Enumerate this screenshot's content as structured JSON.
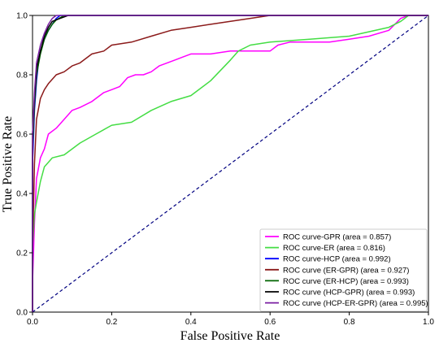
{
  "chart_data": {
    "type": "line",
    "xlabel": "False Positive Rate",
    "ylabel": "True Positive Rate",
    "xlim": [
      0.0,
      1.0
    ],
    "ylim": [
      0.0,
      1.0
    ],
    "xticks": [
      "0.0",
      "0.2",
      "0.4",
      "0.6",
      "0.8",
      "1.0"
    ],
    "yticks": [
      "0.0",
      "0.2",
      "0.4",
      "0.6",
      "0.8",
      "1.0"
    ],
    "grid": false,
    "legend_position": "bottom-right",
    "diagonal": {
      "color": "#000080",
      "style": "dashed",
      "points": [
        [
          0,
          0
        ],
        [
          1,
          1
        ]
      ]
    },
    "series": [
      {
        "name": "ROC curve-GPR (area = 0.857)",
        "color": "#ff00ff",
        "points": [
          [
            0,
            0
          ],
          [
            0,
            0.1
          ],
          [
            0.005,
            0.3
          ],
          [
            0.01,
            0.45
          ],
          [
            0.02,
            0.52
          ],
          [
            0.03,
            0.55
          ],
          [
            0.04,
            0.6
          ],
          [
            0.06,
            0.62
          ],
          [
            0.08,
            0.65
          ],
          [
            0.1,
            0.68
          ],
          [
            0.12,
            0.69
          ],
          [
            0.15,
            0.71
          ],
          [
            0.18,
            0.74
          ],
          [
            0.2,
            0.75
          ],
          [
            0.22,
            0.76
          ],
          [
            0.24,
            0.79
          ],
          [
            0.26,
            0.8
          ],
          [
            0.28,
            0.8
          ],
          [
            0.3,
            0.81
          ],
          [
            0.32,
            0.83
          ],
          [
            0.34,
            0.84
          ],
          [
            0.36,
            0.85
          ],
          [
            0.38,
            0.86
          ],
          [
            0.4,
            0.87
          ],
          [
            0.45,
            0.87
          ],
          [
            0.5,
            0.88
          ],
          [
            0.55,
            0.88
          ],
          [
            0.6,
            0.88
          ],
          [
            0.62,
            0.9
          ],
          [
            0.65,
            0.91
          ],
          [
            0.7,
            0.91
          ],
          [
            0.75,
            0.91
          ],
          [
            0.8,
            0.92
          ],
          [
            0.85,
            0.93
          ],
          [
            0.9,
            0.95
          ],
          [
            0.93,
            0.99
          ],
          [
            0.95,
            1.0
          ],
          [
            1.0,
            1.0
          ]
        ]
      },
      {
        "name": "ROC curve-ER (area = 0.816)",
        "color": "#44dd44",
        "points": [
          [
            0,
            0
          ],
          [
            0,
            0.22
          ],
          [
            0.005,
            0.33
          ],
          [
            0.01,
            0.37
          ],
          [
            0.02,
            0.44
          ],
          [
            0.03,
            0.49
          ],
          [
            0.05,
            0.52
          ],
          [
            0.08,
            0.53
          ],
          [
            0.12,
            0.57
          ],
          [
            0.16,
            0.6
          ],
          [
            0.2,
            0.63
          ],
          [
            0.25,
            0.64
          ],
          [
            0.3,
            0.68
          ],
          [
            0.35,
            0.71
          ],
          [
            0.4,
            0.73
          ],
          [
            0.45,
            0.78
          ],
          [
            0.5,
            0.85
          ],
          [
            0.52,
            0.88
          ],
          [
            0.55,
            0.9
          ],
          [
            0.6,
            0.91
          ],
          [
            0.7,
            0.92
          ],
          [
            0.8,
            0.93
          ],
          [
            0.9,
            0.96
          ],
          [
            0.93,
            0.98
          ],
          [
            0.95,
            1.0
          ],
          [
            1.0,
            1.0
          ]
        ]
      },
      {
        "name": "ROC curve-HCP (area = 0.992)",
        "color": "#0000ff",
        "points": [
          [
            0,
            0
          ],
          [
            0,
            0.5
          ],
          [
            0.005,
            0.68
          ],
          [
            0.01,
            0.78
          ],
          [
            0.015,
            0.84
          ],
          [
            0.02,
            0.88
          ],
          [
            0.03,
            0.92
          ],
          [
            0.04,
            0.95
          ],
          [
            0.05,
            0.97
          ],
          [
            0.06,
            0.99
          ],
          [
            0.07,
            1.0
          ],
          [
            1.0,
            1.0
          ]
        ]
      },
      {
        "name": "ROC curve (ER-GPR)  (area = 0.927)",
        "color": "#8b1a1a",
        "points": [
          [
            0,
            0
          ],
          [
            0,
            0.2
          ],
          [
            0.005,
            0.5
          ],
          [
            0.01,
            0.65
          ],
          [
            0.02,
            0.72
          ],
          [
            0.03,
            0.75
          ],
          [
            0.04,
            0.77
          ],
          [
            0.06,
            0.8
          ],
          [
            0.08,
            0.81
          ],
          [
            0.1,
            0.83
          ],
          [
            0.12,
            0.84
          ],
          [
            0.15,
            0.87
          ],
          [
            0.18,
            0.88
          ],
          [
            0.2,
            0.9
          ],
          [
            0.25,
            0.91
          ],
          [
            0.3,
            0.93
          ],
          [
            0.35,
            0.95
          ],
          [
            0.4,
            0.96
          ],
          [
            0.45,
            0.97
          ],
          [
            0.5,
            0.98
          ],
          [
            0.55,
            0.99
          ],
          [
            0.6,
            1.0
          ],
          [
            1.0,
            1.0
          ]
        ]
      },
      {
        "name": "ROC curve (ER-HCP)  (area = 0.993)",
        "color": "#006400",
        "points": [
          [
            0,
            0
          ],
          [
            0,
            0.55
          ],
          [
            0.005,
            0.7
          ],
          [
            0.01,
            0.8
          ],
          [
            0.02,
            0.87
          ],
          [
            0.03,
            0.92
          ],
          [
            0.04,
            0.95
          ],
          [
            0.05,
            0.97
          ],
          [
            0.06,
            0.985
          ],
          [
            0.08,
            1.0
          ],
          [
            1.0,
            1.0
          ]
        ]
      },
      {
        "name": "ROC curve (HCP-GPR)  (area = 0.993)",
        "color": "#000000",
        "points": [
          [
            0,
            0
          ],
          [
            0,
            0.6
          ],
          [
            0.005,
            0.72
          ],
          [
            0.01,
            0.82
          ],
          [
            0.02,
            0.88
          ],
          [
            0.03,
            0.93
          ],
          [
            0.04,
            0.96
          ],
          [
            0.05,
            0.98
          ],
          [
            0.07,
            0.99
          ],
          [
            0.09,
            1.0
          ],
          [
            1.0,
            1.0
          ]
        ]
      },
      {
        "name": "ROC curve (HCP-ER-GPR)  (area = 0.995)",
        "color": "#7a1fa2",
        "points": [
          [
            0,
            0
          ],
          [
            0,
            0.6
          ],
          [
            0.005,
            0.74
          ],
          [
            0.01,
            0.84
          ],
          [
            0.02,
            0.9
          ],
          [
            0.03,
            0.94
          ],
          [
            0.04,
            0.97
          ],
          [
            0.05,
            0.99
          ],
          [
            0.06,
            1.0
          ],
          [
            1.0,
            1.0
          ]
        ]
      }
    ]
  }
}
